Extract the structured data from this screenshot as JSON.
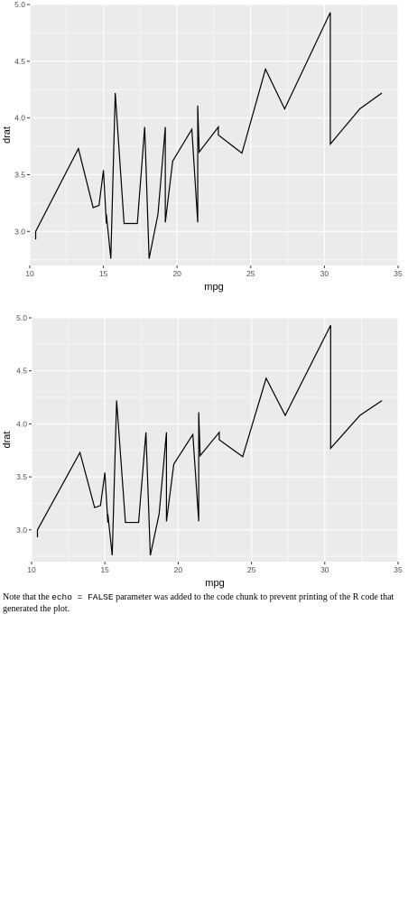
{
  "chart_data": [
    {
      "type": "line",
      "xlabel": "mpg",
      "ylabel": "drat",
      "xlim": [
        10,
        35
      ],
      "ylim": [
        2.7,
        5.0
      ],
      "x_ticks": [
        10,
        15,
        20,
        25,
        30,
        35
      ],
      "y_ticks": [
        3.0,
        3.5,
        4.0,
        4.5,
        5.0
      ],
      "x_tick_labels": [
        "10",
        "15",
        "20",
        "25",
        "30",
        "35"
      ],
      "y_tick_labels": [
        "3.0",
        "3.5",
        "4.0",
        "4.5",
        "5.0"
      ],
      "grid": true,
      "background": "#ebebeb",
      "line_color": "#000000",
      "x": [
        10.4,
        10.4,
        13.3,
        14.3,
        14.7,
        15.0,
        15.2,
        15.2,
        15.5,
        15.8,
        16.4,
        17.3,
        17.8,
        18.1,
        18.7,
        19.2,
        19.2,
        19.7,
        21.0,
        21.0,
        21.4,
        21.4,
        21.5,
        22.8,
        22.8,
        24.4,
        26.0,
        27.3,
        30.4,
        30.4,
        32.4,
        33.9
      ],
      "y": [
        2.93,
        3.0,
        3.73,
        3.21,
        3.23,
        3.54,
        3.07,
        3.15,
        2.76,
        4.22,
        3.07,
        3.07,
        3.92,
        2.76,
        3.15,
        3.92,
        3.08,
        3.62,
        3.9,
        3.9,
        3.08,
        4.11,
        3.7,
        3.92,
        3.85,
        3.69,
        4.43,
        4.08,
        4.93,
        3.77,
        4.08,
        4.22
      ]
    },
    {
      "type": "line",
      "xlabel": "mpg",
      "ylabel": "drat",
      "xlim": [
        10,
        35
      ],
      "ylim": [
        2.7,
        5.0
      ],
      "x_ticks": [
        10,
        15,
        20,
        25,
        30,
        35
      ],
      "y_ticks": [
        3.0,
        3.5,
        4.0,
        4.5,
        5.0
      ],
      "x_tick_labels": [
        "10",
        "15",
        "20",
        "25",
        "30",
        "35"
      ],
      "y_tick_labels": [
        "3.0",
        "3.5",
        "4.0",
        "4.5",
        "5.0"
      ],
      "grid": true,
      "background": "#ebebeb",
      "line_color": "#000000",
      "x": [
        10.4,
        10.4,
        13.3,
        14.3,
        14.7,
        15.0,
        15.2,
        15.2,
        15.5,
        15.8,
        16.4,
        17.3,
        17.8,
        18.1,
        18.7,
        19.2,
        19.2,
        19.7,
        21.0,
        21.0,
        21.4,
        21.4,
        21.5,
        22.8,
        22.8,
        24.4,
        26.0,
        27.3,
        30.4,
        30.4,
        32.4,
        33.9
      ],
      "y": [
        2.93,
        3.0,
        3.73,
        3.21,
        3.23,
        3.54,
        3.07,
        3.15,
        2.76,
        4.22,
        3.07,
        3.07,
        3.92,
        2.76,
        3.15,
        3.92,
        3.08,
        3.62,
        3.9,
        3.9,
        3.08,
        4.11,
        3.7,
        3.92,
        3.85,
        3.69,
        4.43,
        4.08,
        4.93,
        3.77,
        4.08,
        4.22
      ]
    }
  ],
  "note": {
    "text_before": "Note that the ",
    "code": "echo = FALSE",
    "text_after": " parameter was added to the code chunk to prevent printing of the R code that generated the plot."
  }
}
